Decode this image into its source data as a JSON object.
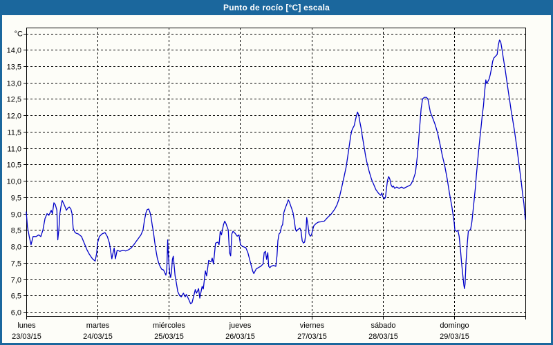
{
  "window": {
    "title": "Punto de rocío [°C] escala"
  },
  "colors": {
    "titlebar_bg": "#1b679d",
    "titlebar_text": "#ffffff",
    "border": "#1b679d",
    "plot_bg": "#fdfdf8",
    "grid": "#000000",
    "frame": "#000000",
    "axis_text": "#000000",
    "line": "#0000c8"
  },
  "chart_data": {
    "type": "line",
    "title": "Punto de rocío [°C] escala",
    "series_name": "Punto de rocío",
    "unit_label": "°C",
    "grid": "dashed",
    "legend_position": "none",
    "y_axis": {
      "min": 6.0,
      "max": 14.5,
      "step": 0.5,
      "frame_min": 5.85,
      "frame_max": 14.7,
      "ticks": [
        {
          "v": 14.5,
          "label": ""
        },
        {
          "v": 14.0,
          "label": "14,0"
        },
        {
          "v": 13.5,
          "label": "13,5"
        },
        {
          "v": 13.0,
          "label": "13,0"
        },
        {
          "v": 12.5,
          "label": "12,5"
        },
        {
          "v": 12.0,
          "label": "12,0"
        },
        {
          "v": 11.5,
          "label": "11,5"
        },
        {
          "v": 11.0,
          "label": "11,0"
        },
        {
          "v": 10.5,
          "label": "10,5"
        },
        {
          "v": 10.0,
          "label": "10,0"
        },
        {
          "v": 9.5,
          "label": "9,5"
        },
        {
          "v": 9.0,
          "label": "9,0"
        },
        {
          "v": 8.5,
          "label": "8,5"
        },
        {
          "v": 8.0,
          "label": "8,0"
        },
        {
          "v": 7.5,
          "label": "7,5"
        },
        {
          "v": 7.0,
          "label": "7,0"
        },
        {
          "v": 6.5,
          "label": "6,5"
        },
        {
          "v": 6.0,
          "label": "6,0"
        }
      ]
    },
    "x_axis": {
      "total_hours": 168,
      "days": [
        {
          "name": "lunes",
          "date": "23/03/15"
        },
        {
          "name": "martes",
          "date": "24/03/15"
        },
        {
          "name": "miércoles",
          "date": "25/03/15"
        },
        {
          "name": "jueves",
          "date": "26/03/15"
        },
        {
          "name": "viernes",
          "date": "27/03/15"
        },
        {
          "name": "sábado",
          "date": "28/03/15"
        },
        {
          "name": "domingo",
          "date": "29/03/15"
        }
      ]
    },
    "points_hours_celsius": [
      [
        0,
        9.05
      ],
      [
        0.4,
        8.6
      ],
      [
        1,
        8.3
      ],
      [
        1.6,
        8.05
      ],
      [
        2.3,
        8.3
      ],
      [
        3.3,
        8.3
      ],
      [
        4.2,
        8.35
      ],
      [
        4.9,
        8.3
      ],
      [
        5.6,
        8.5
      ],
      [
        6.3,
        8.85
      ],
      [
        7,
        9.0
      ],
      [
        7.6,
        8.95
      ],
      [
        8.4,
        9.1
      ],
      [
        8.8,
        9.0
      ],
      [
        9.3,
        9.33
      ],
      [
        9.8,
        9.27
      ],
      [
        10.3,
        9.1
      ],
      [
        10.6,
        8.2
      ],
      [
        11,
        8.55
      ],
      [
        11.3,
        9.0
      ],
      [
        11.7,
        9.23
      ],
      [
        12.1,
        9.4
      ],
      [
        12.6,
        9.3
      ],
      [
        13.1,
        9.2
      ],
      [
        13.5,
        9.1
      ],
      [
        14,
        9.17
      ],
      [
        14.5,
        9.2
      ],
      [
        15,
        9.14
      ],
      [
        15.4,
        9.0
      ],
      [
        15.8,
        8.55
      ],
      [
        16.3,
        8.44
      ],
      [
        16.8,
        8.4
      ],
      [
        17.5,
        8.38
      ],
      [
        18.6,
        8.3
      ],
      [
        19.5,
        8.1
      ],
      [
        20.4,
        7.9
      ],
      [
        21.3,
        7.75
      ],
      [
        22.3,
        7.62
      ],
      [
        23.2,
        7.55
      ],
      [
        23.7,
        7.8
      ],
      [
        24,
        8.1
      ],
      [
        24.6,
        8.3
      ],
      [
        25.5,
        8.38
      ],
      [
        26.5,
        8.42
      ],
      [
        27.3,
        8.3
      ],
      [
        28,
        8.1
      ],
      [
        28.8,
        7.62
      ],
      [
        29.2,
        7.8
      ],
      [
        29.6,
        7.95
      ],
      [
        30,
        7.62
      ],
      [
        30.6,
        7.88
      ],
      [
        31.5,
        7.85
      ],
      [
        32.5,
        7.88
      ],
      [
        33.5,
        7.86
      ],
      [
        34.5,
        7.9
      ],
      [
        35.3,
        7.95
      ],
      [
        36.2,
        8.05
      ],
      [
        37,
        8.15
      ],
      [
        37.8,
        8.25
      ],
      [
        38.6,
        8.35
      ],
      [
        39.3,
        8.5
      ],
      [
        39.8,
        8.8
      ],
      [
        40.3,
        9.03
      ],
      [
        40.7,
        9.12
      ],
      [
        41.2,
        9.14
      ],
      [
        41.6,
        9.05
      ],
      [
        42,
        8.9
      ],
      [
        42.4,
        8.65
      ],
      [
        42.8,
        8.45
      ],
      [
        43.2,
        8.15
      ],
      [
        43.6,
        7.9
      ],
      [
        44.1,
        7.65
      ],
      [
        44.6,
        7.48
      ],
      [
        45.1,
        7.38
      ],
      [
        45.6,
        7.3
      ],
      [
        46.2,
        7.28
      ],
      [
        46.7,
        7.18
      ],
      [
        47,
        7.12
      ],
      [
        47.3,
        7.3
      ],
      [
        47.6,
        8.2
      ],
      [
        47.8,
        7.8
      ],
      [
        48,
        7.5
      ],
      [
        48.3,
        7.17
      ],
      [
        48.6,
        7.05
      ],
      [
        48.9,
        7.25
      ],
      [
        49.2,
        7.6
      ],
      [
        49.5,
        7.7
      ],
      [
        49.8,
        7.4
      ],
      [
        50.1,
        7.1
      ],
      [
        50.5,
        6.9
      ],
      [
        51,
        6.62
      ],
      [
        51.6,
        6.5
      ],
      [
        52.2,
        6.46
      ],
      [
        52.9,
        6.57
      ],
      [
        53.5,
        6.46
      ],
      [
        53.9,
        6.53
      ],
      [
        54.6,
        6.4
      ],
      [
        55.3,
        6.25
      ],
      [
        55.8,
        6.28
      ],
      [
        56.5,
        6.53
      ],
      [
        56.9,
        6.68
      ],
      [
        57.3,
        6.57
      ],
      [
        58,
        6.71
      ],
      [
        58.4,
        6.42
      ],
      [
        59.2,
        6.78
      ],
      [
        59.6,
        6.7
      ],
      [
        60.3,
        7.25
      ],
      [
        60.7,
        7.1
      ],
      [
        61.4,
        7.57
      ],
      [
        62.2,
        7.53
      ],
      [
        62.6,
        7.64
      ],
      [
        63,
        7.46
      ],
      [
        63.7,
        8.1
      ],
      [
        64.5,
        8.13
      ],
      [
        64.9,
        8.05
      ],
      [
        65.3,
        8.46
      ],
      [
        65.7,
        8.35
      ],
      [
        66.4,
        8.67
      ],
      [
        66.8,
        8.77
      ],
      [
        67.2,
        8.7
      ],
      [
        67.6,
        8.6
      ],
      [
        68,
        8.5
      ],
      [
        68.4,
        7.81
      ],
      [
        68.8,
        7.71
      ],
      [
        69.2,
        8.38
      ],
      [
        69.6,
        8.46
      ],
      [
        70.3,
        8.4
      ],
      [
        71,
        8.31
      ],
      [
        71.6,
        8.35
      ],
      [
        72.1,
        8.05
      ],
      [
        72.8,
        8.0
      ],
      [
        73.9,
        7.96
      ],
      [
        74.6,
        7.81
      ],
      [
        75.4,
        7.53
      ],
      [
        76.2,
        7.25
      ],
      [
        76.6,
        7.17
      ],
      [
        77.4,
        7.31
      ],
      [
        78.1,
        7.35
      ],
      [
        78.9,
        7.39
      ],
      [
        79.7,
        7.46
      ],
      [
        80.1,
        7.81
      ],
      [
        80.5,
        7.85
      ],
      [
        80.9,
        7.6
      ],
      [
        81.3,
        7.81
      ],
      [
        81.6,
        7.39
      ],
      [
        82,
        7.35
      ],
      [
        82.4,
        7.39
      ],
      [
        83.2,
        7.42
      ],
      [
        84,
        7.39
      ],
      [
        84.4,
        7.71
      ],
      [
        84.7,
        8.17
      ],
      [
        85.1,
        8.38
      ],
      [
        85.5,
        8.42
      ],
      [
        85.9,
        8.6
      ],
      [
        86.3,
        8.67
      ],
      [
        86.7,
        9.03
      ],
      [
        87.1,
        9.14
      ],
      [
        87.5,
        9.24
      ],
      [
        87.8,
        9.31
      ],
      [
        88.2,
        9.42
      ],
      [
        88.6,
        9.35
      ],
      [
        89,
        9.24
      ],
      [
        89.4,
        9.14
      ],
      [
        89.8,
        9.03
      ],
      [
        90.2,
        8.81
      ],
      [
        90.6,
        8.53
      ],
      [
        90.9,
        8.46
      ],
      [
        91.3,
        8.5
      ],
      [
        91.7,
        8.53
      ],
      [
        92.1,
        8.56
      ],
      [
        92.5,
        8.46
      ],
      [
        92.9,
        8.17
      ],
      [
        93.3,
        8.1
      ],
      [
        93.7,
        8.13
      ],
      [
        94.1,
        8.38
      ],
      [
        94.4,
        8.88
      ],
      [
        94.8,
        8.67
      ],
      [
        95.2,
        8.38
      ],
      [
        95.6,
        8.31
      ],
      [
        96,
        8.35
      ],
      [
        96.4,
        8.5
      ],
      [
        96.8,
        8.63
      ],
      [
        97.6,
        8.7
      ],
      [
        98.3,
        8.74
      ],
      [
        99.1,
        8.75
      ],
      [
        100.3,
        8.77
      ],
      [
        101.4,
        8.88
      ],
      [
        102.6,
        8.98
      ],
      [
        103.8,
        9.13
      ],
      [
        104.6,
        9.27
      ],
      [
        105.3,
        9.45
      ],
      [
        106.1,
        9.77
      ],
      [
        106.9,
        10.09
      ],
      [
        107.7,
        10.44
      ],
      [
        108.4,
        10.87
      ],
      [
        109.2,
        11.37
      ],
      [
        109.6,
        11.54
      ],
      [
        110,
        11.62
      ],
      [
        110.4,
        11.69
      ],
      [
        110.8,
        11.86
      ],
      [
        111.2,
        12.01
      ],
      [
        111.5,
        12.1
      ],
      [
        111.9,
        12.01
      ],
      [
        112.3,
        11.8
      ],
      [
        112.7,
        11.62
      ],
      [
        113.1,
        11.37
      ],
      [
        113.5,
        11.16
      ],
      [
        113.9,
        10.94
      ],
      [
        114.2,
        10.77
      ],
      [
        114.6,
        10.59
      ],
      [
        115.4,
        10.3
      ],
      [
        116.2,
        10.05
      ],
      [
        117,
        9.88
      ],
      [
        117.7,
        9.73
      ],
      [
        118.5,
        9.63
      ],
      [
        118.9,
        9.59
      ],
      [
        119.3,
        9.56
      ],
      [
        119.7,
        9.63
      ],
      [
        120,
        9.52
      ],
      [
        120.5,
        9.45
      ],
      [
        120.9,
        9.49
      ],
      [
        121.2,
        9.73
      ],
      [
        121.6,
        10.02
      ],
      [
        122,
        10.13
      ],
      [
        122.4,
        10.05
      ],
      [
        122.8,
        9.88
      ],
      [
        123.2,
        9.81
      ],
      [
        123.6,
        9.84
      ],
      [
        124,
        9.77
      ],
      [
        124.7,
        9.81
      ],
      [
        125.5,
        9.77
      ],
      [
        126.3,
        9.81
      ],
      [
        127.1,
        9.77
      ],
      [
        127.9,
        9.81
      ],
      [
        128.6,
        9.84
      ],
      [
        129.4,
        9.88
      ],
      [
        130.2,
        10.02
      ],
      [
        131,
        10.25
      ],
      [
        131.7,
        10.8
      ],
      [
        132.3,
        11.5
      ],
      [
        132.9,
        12.2
      ],
      [
        133.4,
        12.5
      ],
      [
        134,
        12.55
      ],
      [
        134.7,
        12.55
      ],
      [
        135.2,
        12.5
      ],
      [
        136,
        12.1
      ],
      [
        136.9,
        11.9
      ],
      [
        137.7,
        11.7
      ],
      [
        138.5,
        11.45
      ],
      [
        139.3,
        11.1
      ],
      [
        140.1,
        10.75
      ],
      [
        140.9,
        10.45
      ],
      [
        141.7,
        10.05
      ],
      [
        142.5,
        9.6
      ],
      [
        143.3,
        9.2
      ],
      [
        144,
        8.75
      ],
      [
        144.3,
        8.49
      ],
      [
        144.9,
        8.46
      ],
      [
        145.3,
        8.49
      ],
      [
        145.7,
        8.31
      ],
      [
        146.1,
        7.96
      ],
      [
        146.5,
        7.53
      ],
      [
        146.9,
        7.17
      ],
      [
        147.3,
        6.82
      ],
      [
        147.5,
        6.71
      ],
      [
        147.7,
        6.85
      ],
      [
        148,
        7.46
      ],
      [
        148.4,
        8.03
      ],
      [
        148.8,
        8.46
      ],
      [
        149.2,
        8.49
      ],
      [
        149.6,
        8.53
      ],
      [
        150,
        8.74
      ],
      [
        150.4,
        9.1
      ],
      [
        150.8,
        9.45
      ],
      [
        151.2,
        9.81
      ],
      [
        151.5,
        10.16
      ],
      [
        151.9,
        10.55
      ],
      [
        152.3,
        10.94
      ],
      [
        152.7,
        11.3
      ],
      [
        153.1,
        11.65
      ],
      [
        153.5,
        12.01
      ],
      [
        153.9,
        12.29
      ],
      [
        154.3,
        12.72
      ],
      [
        154.7,
        13.08
      ],
      [
        155,
        12.97
      ],
      [
        155.4,
        13.04
      ],
      [
        155.8,
        13.11
      ],
      [
        156.2,
        13.25
      ],
      [
        156.6,
        13.43
      ],
      [
        157,
        13.65
      ],
      [
        157.4,
        13.75
      ],
      [
        158.1,
        13.82
      ],
      [
        158.5,
        13.86
      ],
      [
        158.9,
        14.14
      ],
      [
        159.3,
        14.3
      ],
      [
        159.7,
        14.25
      ],
      [
        160.1,
        14.04
      ],
      [
        160.5,
        13.79
      ],
      [
        160.9,
        13.57
      ],
      [
        161.2,
        13.4
      ],
      [
        161.6,
        13.15
      ],
      [
        162,
        12.9
      ],
      [
        162.4,
        12.65
      ],
      [
        162.8,
        12.4
      ],
      [
        163.2,
        12.15
      ],
      [
        163.6,
        11.94
      ],
      [
        164.3,
        11.55
      ],
      [
        165.1,
        11.05
      ],
      [
        165.9,
        10.48
      ],
      [
        166.7,
        9.91
      ],
      [
        167.1,
        9.59
      ],
      [
        167.5,
        9.31
      ],
      [
        167.8,
        9.02
      ],
      [
        168,
        8.82
      ]
    ]
  }
}
